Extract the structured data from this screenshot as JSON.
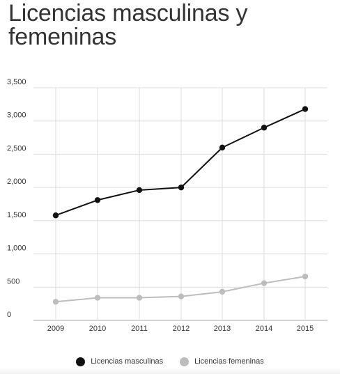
{
  "title": "Licencias masculinas y femeninas",
  "chart_data": {
    "type": "line",
    "title": "Licencias masculinas y femeninas",
    "x": [
      "2009",
      "2010",
      "2011",
      "2012",
      "2013",
      "2014",
      "2015"
    ],
    "ylim": [
      0,
      3500
    ],
    "yticks": [
      0,
      500,
      1000,
      1500,
      2000,
      2500,
      3000,
      3500
    ],
    "ytick_labels": [
      "0",
      "500",
      "1,000",
      "1,500",
      "2,000",
      "2,500",
      "3,000",
      "3,500"
    ],
    "grid": true,
    "legend_position": "bottom",
    "series": [
      {
        "name": "Licencias masculinas",
        "color": "#111111",
        "values": [
          1580,
          1810,
          1960,
          2000,
          2600,
          2900,
          3180
        ]
      },
      {
        "name": "Licencias femeninas",
        "color": "#bdbdbd",
        "values": [
          280,
          340,
          340,
          360,
          430,
          560,
          660
        ]
      }
    ]
  }
}
